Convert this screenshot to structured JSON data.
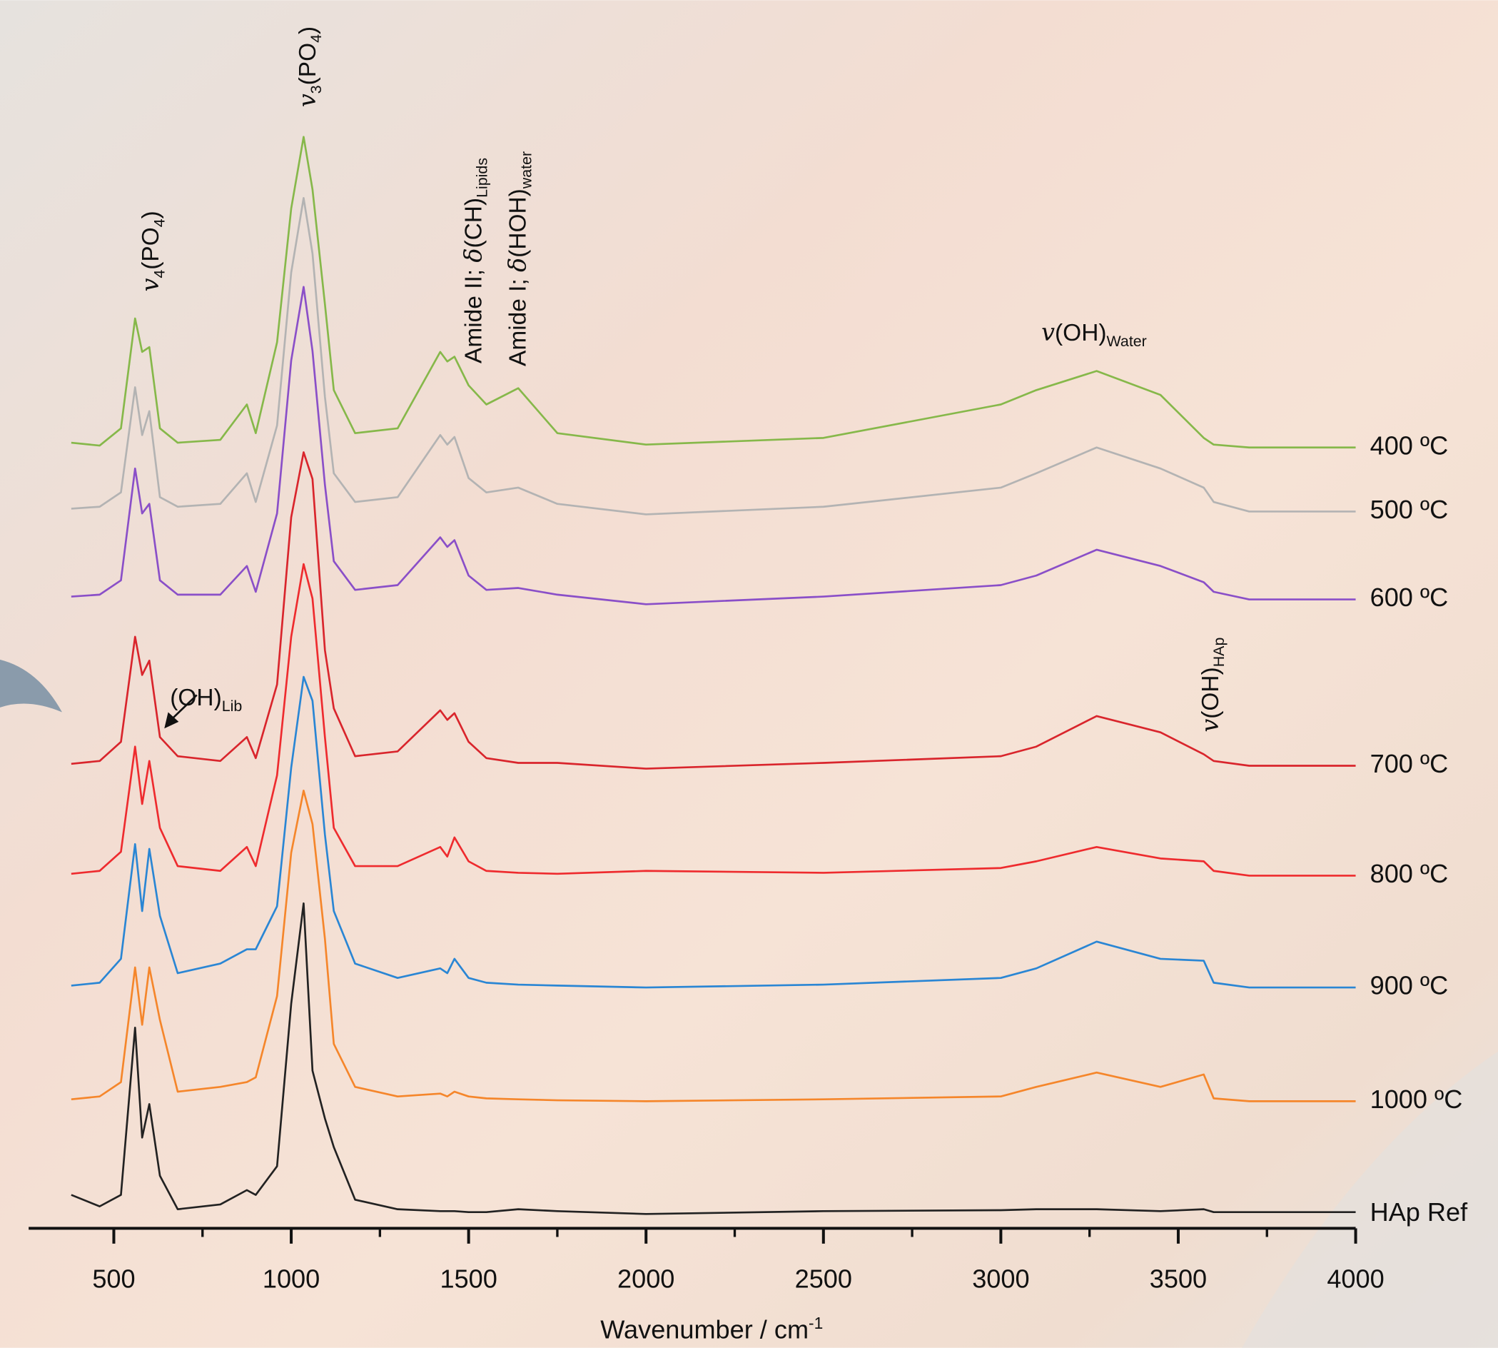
{
  "chart_data": {
    "type": "line",
    "x_label_parts": [
      "Wavenumber / cm",
      "-1"
    ],
    "xlim": [
      260,
      4000
    ],
    "xticks": [
      500,
      1000,
      1500,
      2000,
      2500,
      3000,
      3500,
      4000
    ],
    "xminorticks": [
      750,
      1250,
      1750,
      2250,
      2750,
      3250,
      3750
    ],
    "x": [
      380,
      460,
      520,
      560,
      580,
      600,
      630,
      680,
      800,
      875,
      900,
      960,
      1000,
      1035,
      1060,
      1095,
      1120,
      1180,
      1300,
      1420,
      1440,
      1460,
      1500,
      1550,
      1640,
      1750,
      2000,
      2500,
      3000,
      3100,
      3270,
      3450,
      3572,
      3600,
      3700,
      4000
    ],
    "series": [
      {
        "name": "400 ºC",
        "color": "#86b84a",
        "values": [
          5,
          2,
          20,
          135,
          100,
          105,
          20,
          5,
          8,
          45,
          15,
          110,
          250,
          325,
          270,
          150,
          60,
          15,
          20,
          100,
          90,
          95,
          65,
          45,
          62,
          15,
          3,
          10,
          45,
          60,
          80,
          55,
          10,
          3,
          0,
          0
        ]
      },
      {
        "name": "500 ºC",
        "color": "#b3b3b3",
        "values": [
          3,
          5,
          20,
          130,
          80,
          105,
          15,
          5,
          8,
          40,
          10,
          90,
          250,
          328,
          270,
          120,
          40,
          10,
          15,
          80,
          70,
          78,
          35,
          20,
          25,
          8,
          -3,
          5,
          25,
          40,
          67,
          45,
          25,
          10,
          0,
          0
        ]
      },
      {
        "name": "600 ºC",
        "color": "#8a4fc8",
        "values": [
          3,
          5,
          20,
          137,
          90,
          100,
          20,
          5,
          5,
          35,
          8,
          90,
          250,
          327,
          260,
          120,
          40,
          10,
          15,
          65,
          55,
          62,
          25,
          10,
          12,
          5,
          -5,
          3,
          15,
          25,
          52,
          35,
          18,
          8,
          0,
          0
        ]
      },
      {
        "name": "700 ºC",
        "color": "#d9252c",
        "values": [
          2,
          5,
          25,
          135,
          95,
          110,
          30,
          10,
          5,
          30,
          8,
          85,
          260,
          328,
          300,
          121,
          60,
          10,
          15,
          58,
          48,
          55,
          25,
          8,
          3,
          3,
          -3,
          3,
          10,
          20,
          52,
          35,
          12,
          5,
          0,
          0
        ]
      },
      {
        "name": "800 ºC",
        "color": "#ee2b2e",
        "values": [
          2,
          5,
          25,
          135,
          75,
          120,
          50,
          10,
          5,
          30,
          10,
          105,
          250,
          326,
          290,
          145,
          50,
          10,
          10,
          30,
          20,
          40,
          15,
          5,
          3,
          2,
          5,
          3,
          8,
          15,
          30,
          18,
          15,
          5,
          0,
          0
        ]
      },
      {
        "name": "900 ºC",
        "color": "#2a86d4",
        "values": [
          2,
          5,
          30,
          150,
          80,
          145,
          75,
          15,
          25,
          40,
          40,
          85,
          230,
          325,
          300,
          160,
          80,
          25,
          10,
          20,
          15,
          30,
          10,
          5,
          3,
          2,
          0,
          3,
          10,
          20,
          48,
          30,
          28,
          5,
          0,
          0
        ]
      },
      {
        "name": "1000 ºC",
        "color": "#f5862b",
        "values": [
          2,
          5,
          20,
          140,
          80,
          140,
          85,
          10,
          15,
          20,
          25,
          110,
          260,
          325,
          290,
          170,
          60,
          15,
          5,
          8,
          5,
          10,
          5,
          3,
          2,
          1,
          0,
          2,
          5,
          15,
          30,
          15,
          28,
          3,
          0,
          0
        ]
      },
      {
        "name": "HAp Ref",
        "color": "#222222",
        "values": [
          20,
          8,
          20,
          195,
          80,
          115,
          40,
          5,
          10,
          25,
          20,
          50,
          220,
          325,
          150,
          100,
          70,
          15,
          5,
          3,
          3,
          3,
          2,
          2,
          5,
          3,
          0,
          3,
          4,
          5,
          5,
          3,
          5,
          2,
          2,
          2
        ]
      }
    ],
    "annotations": [
      {
        "parts": [
          "v",
          "4",
          "(PO",
          "4",
          ")"
        ]
      },
      {
        "parts": [
          "v",
          "3",
          "(PO",
          "4",
          ")"
        ]
      },
      {
        "parts": [
          "Amide II; ",
          "δ",
          "(CH)",
          "Lipids"
        ]
      },
      {
        "parts": [
          "Amide I; ",
          "δ",
          "(HOH)",
          "water"
        ]
      },
      {
        "parts": [
          "v",
          "(OH)",
          "Water"
        ]
      },
      {
        "parts": [
          "v",
          "(OH)",
          "HAp"
        ]
      },
      {
        "parts": [
          "(OH)",
          "Lib"
        ]
      }
    ]
  }
}
